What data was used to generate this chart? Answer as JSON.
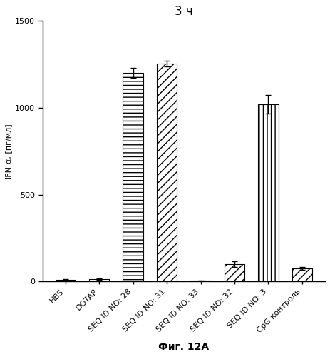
{
  "title": "3 ч",
  "xlabel": "Фиг. 12А",
  "ylabel": "IFN-α, [пг/мл]",
  "ylim": [
    0,
    1500
  ],
  "yticks": [
    0,
    500,
    1000,
    1500
  ],
  "categories": [
    "HBS",
    "DOTAP",
    "SEQ ID NO: 28",
    "SEQ ID NO: 31",
    "SEQ ID NO: 33",
    "SEQ ID NO: 32",
    "SEQ ID NO: 3",
    "CpG контроль"
  ],
  "values": [
    8,
    12,
    1200,
    1255,
    4,
    100,
    1020,
    75
  ],
  "errors": [
    4,
    4,
    28,
    18,
    2,
    16,
    52,
    10
  ],
  "hatches": [
    "",
    "",
    "---",
    "///",
    "",
    "///",
    "|||",
    "///"
  ],
  "bar_colors": [
    "white",
    "white",
    "white",
    "white",
    "white",
    "white",
    "white",
    "white"
  ],
  "edge_colors": [
    "black",
    "black",
    "black",
    "black",
    "black",
    "black",
    "black",
    "black"
  ],
  "bar_width": 0.6,
  "title_fontsize": 12,
  "label_fontsize": 8,
  "tick_fontsize": 8,
  "xlabel_fontsize": 10,
  "background_color": "white"
}
